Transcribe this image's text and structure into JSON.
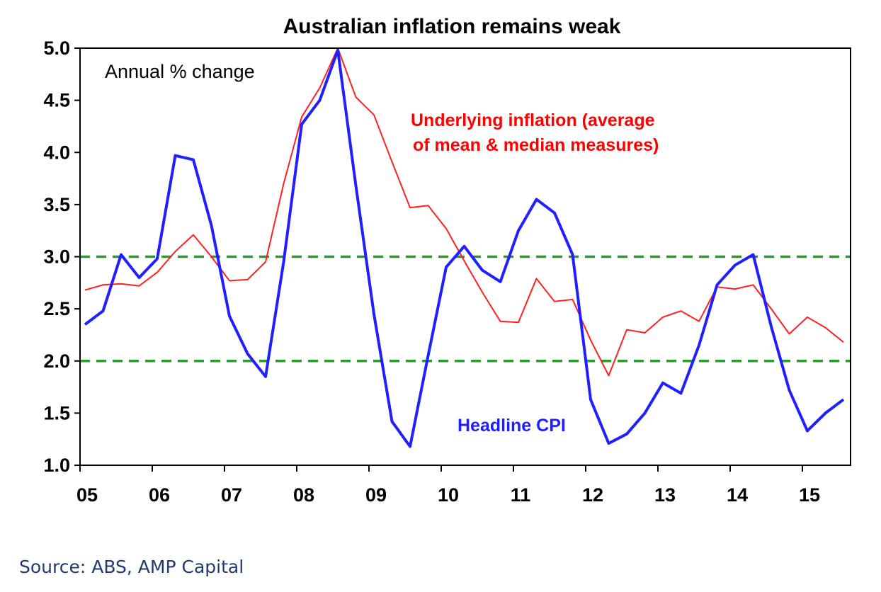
{
  "source": "Source: ABS, AMP Capital",
  "colors": {
    "headline": "#1f1fff",
    "underlying": "#ff2020",
    "band": "#2e9a2e"
  },
  "chart_data": {
    "type": "line",
    "title": "Australian inflation remains weak",
    "ylabel": "",
    "xlabel": "",
    "ylim": [
      1.0,
      5.0
    ],
    "yticks": [
      "5.0",
      "4.5",
      "4.0",
      "3.5",
      "3.0",
      "2.5",
      "2.0",
      "1.5",
      "1.0"
    ],
    "xticks": [
      "05",
      "06",
      "07",
      "08",
      "09",
      "10",
      "11",
      "12",
      "13",
      "14",
      "15"
    ],
    "grid": false,
    "annotations": {
      "units": "Annual % change",
      "underlying_line1": "Underlying inflation (average",
      "underlying_line2": "of mean & median measures)",
      "headline": "Headline CPI"
    },
    "reference_lines": [
      3.0,
      2.0
    ],
    "x": [
      "Mar-05",
      "Jun-05",
      "Sep-05",
      "Dec-05",
      "Mar-06",
      "Jun-06",
      "Sep-06",
      "Dec-06",
      "Mar-07",
      "Jun-07",
      "Sep-07",
      "Dec-07",
      "Mar-08",
      "Jun-08",
      "Sep-08",
      "Dec-08",
      "Mar-09",
      "Jun-09",
      "Sep-09",
      "Dec-09",
      "Mar-10",
      "Jun-10",
      "Sep-10",
      "Dec-10",
      "Mar-11",
      "Jun-11",
      "Sep-11",
      "Dec-11",
      "Mar-12",
      "Jun-12",
      "Sep-12",
      "Dec-12",
      "Mar-13",
      "Jun-13",
      "Sep-13",
      "Dec-13",
      "Mar-14",
      "Jun-14",
      "Sep-14",
      "Dec-14",
      "Mar-15",
      "Jun-15",
      "Sep-15"
    ],
    "series": [
      {
        "name": "Headline CPI",
        "values": [
          2.35,
          2.48,
          3.02,
          2.8,
          2.98,
          3.97,
          3.93,
          3.3,
          2.43,
          2.07,
          1.85,
          2.95,
          4.27,
          4.5,
          4.98,
          3.68,
          2.45,
          1.42,
          1.18,
          2.05,
          2.9,
          3.1,
          2.87,
          2.76,
          3.25,
          3.55,
          3.42,
          3.02,
          1.63,
          1.21,
          1.3,
          1.5,
          1.79,
          1.69,
          2.15,
          2.73,
          2.92,
          3.02,
          2.33,
          1.72,
          1.33,
          1.5,
          1.63
        ]
      },
      {
        "name": "Underlying inflation (average of mean & median measures)",
        "values": [
          2.68,
          2.73,
          2.74,
          2.72,
          2.85,
          3.05,
          3.21,
          3.0,
          2.77,
          2.78,
          2.95,
          3.7,
          4.34,
          4.62,
          5.0,
          4.53,
          4.36,
          3.91,
          3.47,
          3.49,
          3.27,
          2.96,
          2.66,
          2.38,
          2.37,
          2.79,
          2.57,
          2.59,
          2.2,
          1.86,
          2.3,
          2.27,
          2.42,
          2.48,
          2.38,
          2.71,
          2.69,
          2.73,
          2.5,
          2.26,
          2.42,
          2.32,
          2.18
        ]
      }
    ]
  }
}
